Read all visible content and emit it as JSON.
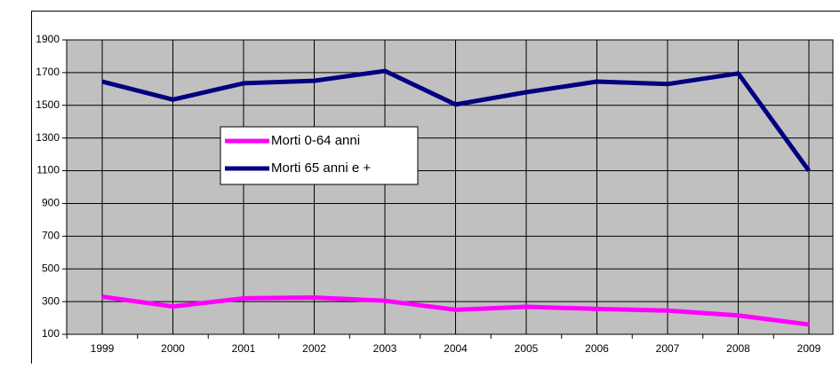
{
  "chart_data": {
    "type": "line",
    "categories": [
      "1999",
      "2000",
      "2001",
      "2002",
      "2003",
      "2004",
      "2005",
      "2006",
      "2007",
      "2008",
      "2009"
    ],
    "series": [
      {
        "name": "Morti 0-64 anni",
        "color": "#ff00ff",
        "values": [
          330,
          270,
          320,
          325,
          305,
          250,
          268,
          255,
          245,
          215,
          160
        ]
      },
      {
        "name": "Morti 65 anni e +",
        "color": "#000080",
        "values": [
          1645,
          1535,
          1635,
          1650,
          1710,
          1505,
          1580,
          1645,
          1630,
          1695,
          1100
        ]
      }
    ],
    "ylim": [
      100,
      1900
    ],
    "yticks": [
      100,
      300,
      500,
      700,
      900,
      1100,
      1300,
      1500,
      1700,
      1900
    ],
    "grid": true,
    "background": "#c0c0c0"
  }
}
